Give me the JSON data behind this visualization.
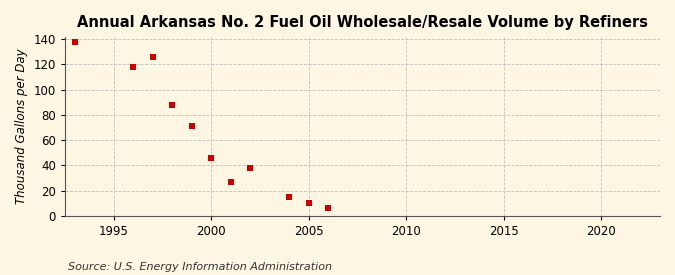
{
  "title": "Annual Arkansas No. 2 Fuel Oil Wholesale/Resale Volume by Refiners",
  "ylabel": "Thousand Gallons per Day",
  "source": "Source: U.S. Energy Information Administration",
  "x_data": [
    1993,
    1996,
    1997,
    1998,
    1999,
    2000,
    2001,
    2002,
    2004,
    2005,
    2006
  ],
  "y_data": [
    138,
    118,
    126,
    88,
    71,
    46,
    27,
    38,
    15,
    10,
    6
  ],
  "marker_color": "#cc0000",
  "marker": "s",
  "marker_size": 4,
  "xlim": [
    1992.5,
    2023
  ],
  "ylim": [
    0,
    142
  ],
  "xticks": [
    1995,
    2000,
    2005,
    2010,
    2015,
    2020
  ],
  "yticks": [
    0,
    20,
    40,
    60,
    80,
    100,
    120,
    140
  ],
  "background_color": "#fdf6e3",
  "plot_bg_color": "#fdf6e3",
  "grid_color": "#bbbbbb",
  "title_fontsize": 10.5,
  "axis_label_fontsize": 8.5,
  "tick_fontsize": 8.5,
  "source_fontsize": 8
}
